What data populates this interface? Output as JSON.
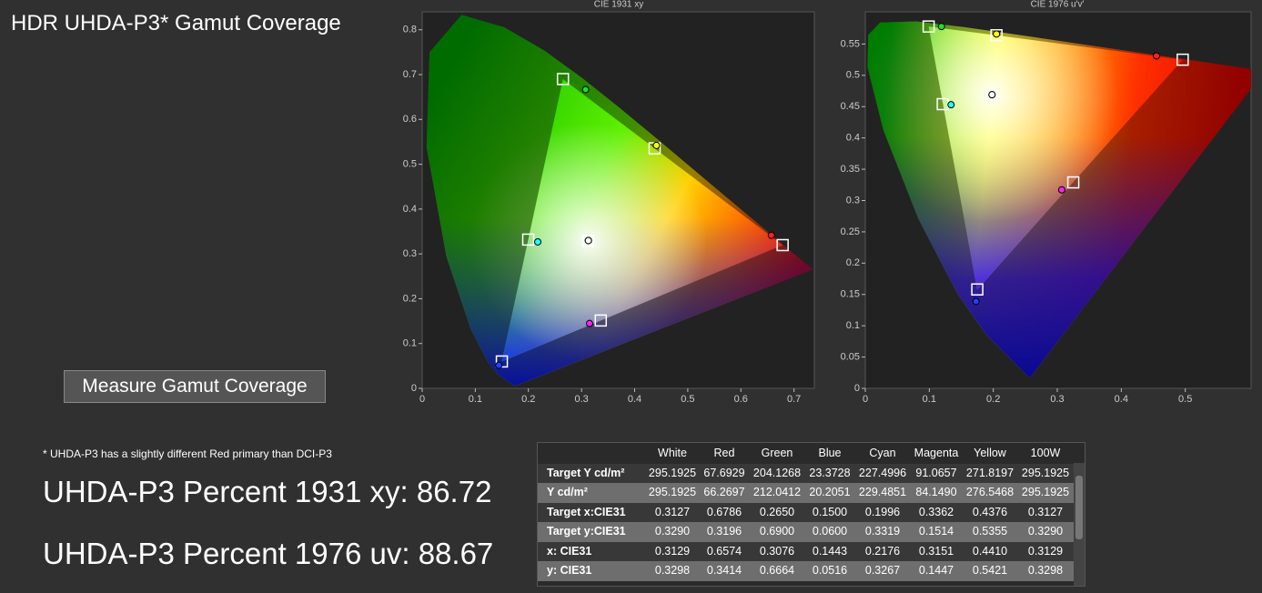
{
  "header": {
    "title": "HDR UHDA-P3* Gamut Coverage"
  },
  "button": {
    "label": "Measure Gamut Coverage"
  },
  "footnote": "* UHDA-P3 has a slightly different Red primary than DCI-P3",
  "results": [
    "UHDA-P3 Percent 1931 xy: 86.72",
    "UHDA-P3 Percent 1976 uv: 88.67"
  ],
  "marker_colors": [
    "#ffffff",
    "#ff2020",
    "#20e020",
    "#2040ff",
    "#20ffff",
    "#ff20ff",
    "#ffff20",
    "#ffffff"
  ],
  "chart_data": [
    {
      "type": "scatter",
      "title": "CIE 1931 xy",
      "xlim": [
        0,
        0.74
      ],
      "ylim": [
        0,
        0.84
      ],
      "xticks": [
        0,
        0.1,
        0.2,
        0.3,
        0.4,
        0.5,
        0.6,
        0.7
      ],
      "yticks": [
        0,
        0.1,
        0.2,
        0.3,
        0.4,
        0.5,
        0.6,
        0.7,
        0.8
      ]
    },
    {
      "type": "scatter",
      "title": "CIE 1976 u'v'",
      "xlim": [
        0,
        0.6
      ],
      "ylim": [
        0,
        0.6
      ],
      "xticks": [
        0,
        0.1,
        0.2,
        0.3,
        0.4,
        0.5
      ],
      "yticks": [
        0,
        0.05,
        0.1,
        0.15,
        0.2,
        0.25,
        0.3,
        0.35,
        0.4,
        0.45,
        0.5,
        0.55
      ],
      "target": {
        "x": [
          0.198,
          0.496,
          0.099,
          0.175,
          0.121,
          0.325,
          0.205,
          0.198
        ],
        "y": [
          0.468,
          0.525,
          0.578,
          0.158,
          0.454,
          0.329,
          0.564,
          0.468
        ]
      },
      "measured": {
        "x": [
          0.198,
          0.455,
          0.119,
          0.173,
          0.134,
          0.307,
          0.205,
          0.198
        ],
        "y": [
          0.469,
          0.531,
          0.578,
          0.139,
          0.453,
          0.317,
          0.566,
          0.469
        ]
      }
    }
  ],
  "table": {
    "columns": [
      "White",
      "Red",
      "Green",
      "Blue",
      "Cyan",
      "Magenta",
      "Yellow",
      "100W"
    ],
    "rows": [
      {
        "label": "Target Y cd/m²",
        "values": [
          "295.1925",
          "67.6929",
          "204.1268",
          "23.3728",
          "227.4996",
          "91.0657",
          "271.8197",
          "295.1925"
        ]
      },
      {
        "label": "Y cd/m²",
        "values": [
          "295.1925",
          "66.2697",
          "212.0412",
          "20.2051",
          "229.4851",
          "84.1490",
          "276.5468",
          "295.1925"
        ]
      },
      {
        "label": "Target x:CIE31",
        "values": [
          "0.3127",
          "0.6786",
          "0.2650",
          "0.1500",
          "0.1996",
          "0.3362",
          "0.4376",
          "0.3127"
        ]
      },
      {
        "label": "Target y:CIE31",
        "values": [
          "0.3290",
          "0.3196",
          "0.6900",
          "0.0600",
          "0.3319",
          "0.1514",
          "0.5355",
          "0.3290"
        ]
      },
      {
        "label": "x: CIE31",
        "values": [
          "0.3129",
          "0.6574",
          "0.3076",
          "0.1443",
          "0.2176",
          "0.3151",
          "0.4410",
          "0.3129"
        ]
      },
      {
        "label": "y: CIE31",
        "values": [
          "0.3298",
          "0.3414",
          "0.6664",
          "0.0516",
          "0.3267",
          "0.1447",
          "0.5421",
          "0.3298"
        ]
      }
    ]
  }
}
